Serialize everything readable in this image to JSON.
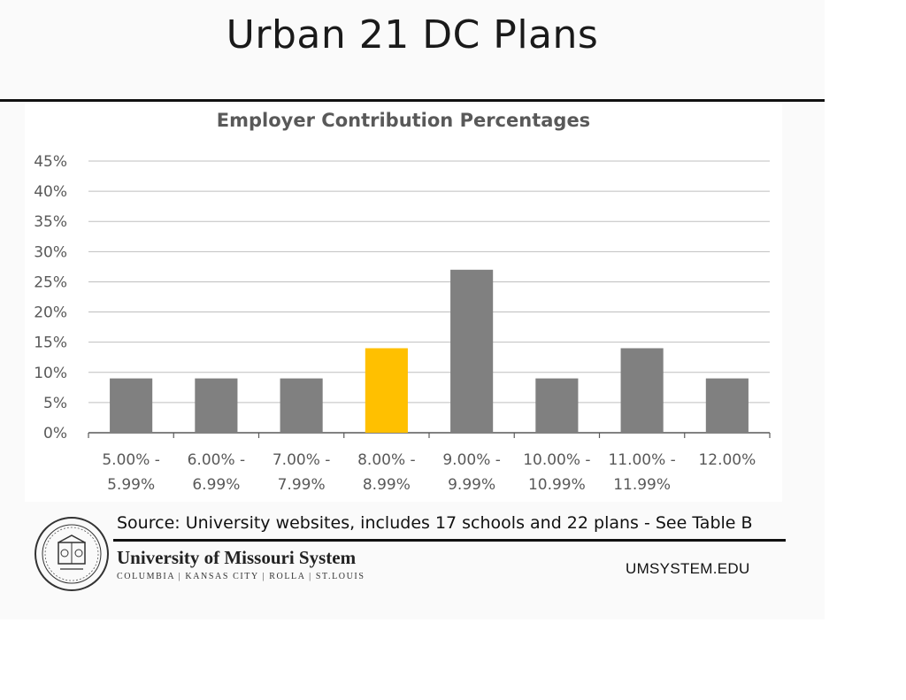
{
  "slide": {
    "title": "Urban 21 DC Plans",
    "source": "Source: University websites, includes 17 schools and 22 plans - See Table B",
    "footer": {
      "org_name": "University of Missouri System",
      "campuses": "COLUMBIA | KANSAS CITY | ROLLA | ST.LOUIS",
      "url": "UMSYSTEM.EDU"
    }
  },
  "chart_data": {
    "type": "bar",
    "title": "Employer Contribution Percentages",
    "xlabel": "",
    "ylabel": "",
    "categories": [
      [
        "5.00% -",
        "5.99%"
      ],
      [
        "6.00% -",
        "6.99%"
      ],
      [
        "7.00% -",
        "7.99%"
      ],
      [
        "8.00% -",
        "8.99%"
      ],
      [
        "9.00% -",
        "9.99%"
      ],
      [
        "10.00% -",
        "10.99%"
      ],
      [
        "11.00% -",
        "11.99%"
      ],
      [
        "12.00%"
      ]
    ],
    "values": [
      9,
      9,
      9,
      14,
      27,
      9,
      14,
      9
    ],
    "highlight_index": 3,
    "ylim": [
      0,
      45
    ],
    "yticks": [
      "0%",
      "5%",
      "10%",
      "15%",
      "20%",
      "25%",
      "30%",
      "35%",
      "40%",
      "45%"
    ],
    "grid": true,
    "legend": "none",
    "colors": {
      "bar": "#808080",
      "highlight": "#ffc000",
      "grid": "#bfbfbf",
      "axis": "#595959"
    }
  }
}
